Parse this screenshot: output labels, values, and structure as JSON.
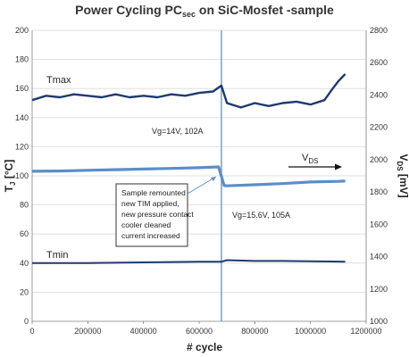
{
  "chart_data": {
    "type": "line",
    "title": "Power Cycling PC",
    "title_subscript": "sec",
    "title_suffix": " on SiC-Mosfet -sample",
    "xlabel": "# cycle",
    "ylabel_left": "T",
    "ylabel_left_sub": "J",
    "ylabel_left_unit": " [°C]",
    "ylabel_right": "V",
    "ylabel_right_sub": "DS",
    "ylabel_right_unit": " [mV]",
    "xlim": [
      0,
      1200000
    ],
    "ylim_left": [
      0,
      200
    ],
    "ylim_right": [
      1000,
      2800
    ],
    "x_ticks": [
      "0",
      "200000",
      "400000",
      "600000",
      "800000",
      "1000000",
      "1200000"
    ],
    "y_ticks_left": [
      "0",
      "20",
      "40",
      "60",
      "80",
      "100",
      "120",
      "140",
      "160",
      "180",
      "200"
    ],
    "y_ticks_right": [
      "1000",
      "1200",
      "1400",
      "1600",
      "1800",
      "2000",
      "2200",
      "2400",
      "2600",
      "2800"
    ],
    "grid": "horizontal",
    "colors": {
      "dark": "#1f3a6e",
      "light": "#5b8ec9",
      "axis": "#7f7f7f",
      "vline": "#6fa0d0"
    },
    "series": [
      {
        "name": "Tmax",
        "axis": "left",
        "x": [
          0,
          50000,
          100000,
          150000,
          200000,
          250000,
          300000,
          350000,
          400000,
          450000,
          500000,
          550000,
          600000,
          650000,
          680000,
          700000,
          750000,
          800000,
          850000,
          900000,
          950000,
          1000000,
          1050000,
          1080000,
          1100000,
          1125000
        ],
        "y": [
          152,
          155,
          154,
          156,
          155,
          154,
          156,
          154,
          155,
          154,
          156,
          155,
          157,
          158,
          162,
          150,
          147,
          150,
          148,
          150,
          151,
          149,
          152,
          160,
          165,
          170
        ]
      },
      {
        "name": "VDS",
        "axis": "right",
        "x": [
          0,
          100000,
          200000,
          300000,
          400000,
          500000,
          600000,
          670000,
          690000,
          700000,
          800000,
          900000,
          1000000,
          1100000,
          1125000
        ],
        "y": [
          1928,
          1930,
          1934,
          1938,
          1942,
          1946,
          1950,
          1955,
          1840,
          1838,
          1845,
          1852,
          1862,
          1866,
          1868
        ]
      },
      {
        "name": "Tmin",
        "axis": "left",
        "x": [
          0,
          200000,
          400000,
          600000,
          680000,
          700000,
          800000,
          900000,
          1000000,
          1125000
        ],
        "y": [
          40,
          40,
          40.5,
          41,
          41,
          42,
          41.5,
          41.5,
          41.2,
          41
        ]
      }
    ],
    "series_labels": {
      "tmax": "Tmax",
      "tmin": "Tmin",
      "vds_main": "V",
      "vds_sub": "DS"
    },
    "annotations": {
      "gate1": "Vg=14V, 102A",
      "gate2": "Vg=15.6V, 105A",
      "event_x": 680000,
      "callout_lines": [
        "Sample remounted",
        "new TIM applied,",
        "new pressure contact",
        "cooler cleaned",
        "current increased"
      ]
    }
  }
}
